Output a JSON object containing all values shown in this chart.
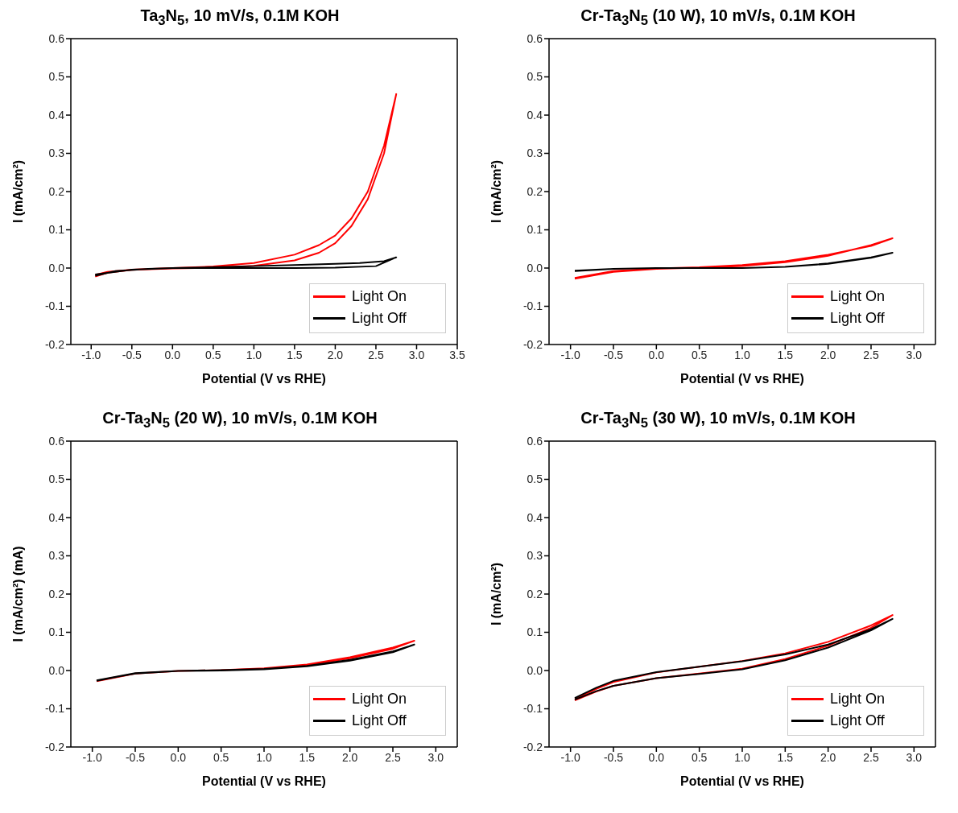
{
  "chart_data": [
    {
      "type": "line",
      "title": "Ta$_{3}$N$_{5}$, 10 mV/s, 0.1M KOH",
      "xlabel": "Potential (V vs RHE)",
      "ylabel": "I (mA/cm²)",
      "xlim": [
        -1.25,
        3.5
      ],
      "xticks": [
        {
          "value": -1,
          "label": "-1.0"
        },
        {
          "value": -0.5,
          "label": "-0.5"
        },
        {
          "value": 0,
          "label": "0.0"
        },
        {
          "value": 0.5,
          "label": "0.5"
        },
        {
          "value": 1,
          "label": "1.0"
        },
        {
          "value": 1.5,
          "label": "1.5"
        },
        {
          "value": 2,
          "label": "2.0"
        },
        {
          "value": 2.5,
          "label": "2.5"
        },
        {
          "value": 3,
          "label": "3.0"
        },
        {
          "value": 3.5,
          "label": "3.5"
        }
      ],
      "ylim": [
        -0.2,
        0.6
      ],
      "yticks": [
        {
          "value": -0.2,
          "label": "-0.2"
        },
        {
          "value": -0.1,
          "label": "-0.1"
        },
        {
          "value": 0,
          "label": "0.0"
        },
        {
          "value": 0.1,
          "label": "0.1"
        },
        {
          "value": 0.2,
          "label": "0.2"
        },
        {
          "value": 0.3,
          "label": "0.3"
        },
        {
          "value": 0.4,
          "label": "0.4"
        },
        {
          "value": 0.5,
          "label": "0.5"
        },
        {
          "value": 0.6,
          "label": "0.6"
        }
      ],
      "legend": "bottom right",
      "grid": false,
      "series": [
        {
          "name": "Light On",
          "color": "#ff0000",
          "x": [
            -0.95,
            -0.8,
            -0.5,
            0,
            0.5,
            1.0,
            1.5,
            1.8,
            2.0,
            2.2,
            2.4,
            2.6,
            2.75,
            2.6,
            2.4,
            2.2,
            2.0,
            1.8,
            1.5,
            1.0,
            0.5,
            0,
            -0.5,
            -0.8,
            -0.95
          ],
          "values": [
            -0.022,
            -0.012,
            -0.005,
            -0.001,
            0.001,
            0.006,
            0.02,
            0.04,
            0.065,
            0.11,
            0.18,
            0.3,
            0.455,
            0.32,
            0.2,
            0.13,
            0.085,
            0.06,
            0.035,
            0.013,
            0.004,
            0.0,
            -0.004,
            -0.01,
            -0.018
          ]
        },
        {
          "name": "Light Off",
          "color": "#000000",
          "x": [
            -0.95,
            -0.7,
            -0.3,
            0,
            0.5,
            1.0,
            1.5,
            2.0,
            2.5,
            2.75,
            2.6,
            2.3,
            2.0,
            1.5,
            1.0,
            0.5,
            0,
            -0.5,
            -0.95
          ],
          "values": [
            -0.02,
            -0.008,
            -0.002,
            0,
            0,
            0,
            0,
            0.001,
            0.005,
            0.028,
            0.018,
            0.013,
            0.011,
            0.008,
            0.005,
            0.002,
            0,
            -0.004,
            -0.017
          ]
        }
      ]
    },
    {
      "type": "line",
      "title": "Cr-Ta$_{3}$N$_{5}$ (10 W), 10 mV/s, 0.1M KOH",
      "xlabel": "Potential (V vs RHE)",
      "ylabel": "I (mA/cm²)",
      "xlim": [
        -1.25,
        3.25
      ],
      "xticks": [
        {
          "value": -1,
          "label": "-1.0"
        },
        {
          "value": -0.5,
          "label": "-0.5"
        },
        {
          "value": 0,
          "label": "0.0"
        },
        {
          "value": 0.5,
          "label": "0.5"
        },
        {
          "value": 1,
          "label": "1.0"
        },
        {
          "value": 1.5,
          "label": "1.5"
        },
        {
          "value": 2,
          "label": "2.0"
        },
        {
          "value": 2.5,
          "label": "2.5"
        },
        {
          "value": 3,
          "label": "3.0"
        }
      ],
      "ylim": [
        -0.2,
        0.6
      ],
      "yticks": [
        {
          "value": -0.2,
          "label": "-0.2"
        },
        {
          "value": -0.1,
          "label": "-0.1"
        },
        {
          "value": 0,
          "label": "0.0"
        },
        {
          "value": 0.1,
          "label": "0.1"
        },
        {
          "value": 0.2,
          "label": "0.2"
        },
        {
          "value": 0.3,
          "label": "0.3"
        },
        {
          "value": 0.4,
          "label": "0.4"
        },
        {
          "value": 0.5,
          "label": "0.5"
        },
        {
          "value": 0.6,
          "label": "0.6"
        }
      ],
      "legend": "bottom right",
      "grid": false,
      "series": [
        {
          "name": "Light On",
          "color": "#ff0000",
          "x": [
            -0.95,
            -0.7,
            -0.5,
            0,
            0.5,
            1.0,
            1.5,
            2.0,
            2.5,
            2.75,
            2.5,
            2.0,
            1.5,
            1.0,
            0.5,
            0,
            -0.5,
            -0.95
          ],
          "values": [
            -0.028,
            -0.018,
            -0.01,
            -0.002,
            0.001,
            0.005,
            0.015,
            0.032,
            0.06,
            0.078,
            0.058,
            0.035,
            0.018,
            0.008,
            0.002,
            -0.001,
            -0.008,
            -0.026
          ]
        },
        {
          "name": "Light Off",
          "color": "#000000",
          "x": [
            -0.95,
            -0.5,
            0,
            0.5,
            1.0,
            1.5,
            2.0,
            2.5,
            2.75,
            2.5,
            2.0,
            1.5,
            1.0,
            0.5,
            0,
            -0.5,
            -0.95
          ],
          "values": [
            -0.008,
            -0.002,
            0,
            0,
            0,
            0.003,
            0.012,
            0.028,
            0.04,
            0.027,
            0.011,
            0.003,
            0,
            0,
            0,
            -0.002,
            -0.007
          ]
        }
      ]
    },
    {
      "type": "line",
      "title": "Cr-Ta$_{3}$N$_{5}$ (20 W), 10 mV/s, 0.1M KOH",
      "xlabel": "Potential (V vs RHE)",
      "ylabel": "I (mA/cm²) (mA)",
      "xlim": [
        -1.25,
        3.25
      ],
      "xticks": [
        {
          "value": -1,
          "label": "-1.0"
        },
        {
          "value": -0.5,
          "label": "-0.5"
        },
        {
          "value": 0,
          "label": "0.0"
        },
        {
          "value": 0.5,
          "label": "0.5"
        },
        {
          "value": 1,
          "label": "1.0"
        },
        {
          "value": 1.5,
          "label": "1.5"
        },
        {
          "value": 2,
          "label": "2.0"
        },
        {
          "value": 2.5,
          "label": "2.5"
        },
        {
          "value": 3,
          "label": "3.0"
        }
      ],
      "ylim": [
        -0.2,
        0.6
      ],
      "yticks": [
        {
          "value": -0.2,
          "label": "-0.2"
        },
        {
          "value": -0.1,
          "label": "-0.1"
        },
        {
          "value": 0,
          "label": "0.0"
        },
        {
          "value": 0.1,
          "label": "0.1"
        },
        {
          "value": 0.2,
          "label": "0.2"
        },
        {
          "value": 0.3,
          "label": "0.3"
        },
        {
          "value": 0.4,
          "label": "0.4"
        },
        {
          "value": 0.5,
          "label": "0.5"
        },
        {
          "value": 0.6,
          "label": "0.6"
        }
      ],
      "legend": "bottom right",
      "grid": false,
      "series": [
        {
          "name": "Light On",
          "color": "#ff0000",
          "x": [
            -0.95,
            -0.7,
            -0.5,
            0,
            0.5,
            1.0,
            1.5,
            2.0,
            2.5,
            2.75,
            2.5,
            2.0,
            1.5,
            1.0,
            0.5,
            0,
            -0.5,
            -0.95
          ],
          "values": [
            -0.028,
            -0.017,
            -0.008,
            -0.001,
            0.001,
            0.006,
            0.016,
            0.035,
            0.06,
            0.078,
            0.057,
            0.032,
            0.014,
            0.005,
            0.001,
            -0.001,
            -0.008,
            -0.027
          ]
        },
        {
          "name": "Light Off",
          "color": "#000000",
          "x": [
            -0.95,
            -0.7,
            -0.5,
            0,
            0.5,
            1.0,
            1.5,
            2.0,
            2.5,
            2.75,
            2.5,
            2.0,
            1.5,
            1.0,
            0.5,
            0,
            -0.5,
            -0.95
          ],
          "values": [
            -0.027,
            -0.016,
            -0.008,
            -0.001,
            0.001,
            0.004,
            0.012,
            0.028,
            0.05,
            0.068,
            0.048,
            0.026,
            0.011,
            0.003,
            0,
            -0.001,
            -0.007,
            -0.026
          ]
        }
      ]
    },
    {
      "type": "line",
      "title": "Cr-Ta$_{3}$N$_{5}$ (30 W), 10 mV/s, 0.1M KOH",
      "xlabel": "Potential (V vs RHE)",
      "ylabel": "I (mA/cm²)",
      "xlim": [
        -1.25,
        3.25
      ],
      "xticks": [
        {
          "value": -1,
          "label": "-1.0"
        },
        {
          "value": -0.5,
          "label": "-0.5"
        },
        {
          "value": 0,
          "label": "0.0"
        },
        {
          "value": 0.5,
          "label": "0.5"
        },
        {
          "value": 1,
          "label": "1.0"
        },
        {
          "value": 1.5,
          "label": "1.5"
        },
        {
          "value": 2,
          "label": "2.0"
        },
        {
          "value": 2.5,
          "label": "2.5"
        },
        {
          "value": 3,
          "label": "3.0"
        }
      ],
      "ylim": [
        -0.2,
        0.6
      ],
      "yticks": [
        {
          "value": -0.2,
          "label": "-0.2"
        },
        {
          "value": -0.1,
          "label": "-0.1"
        },
        {
          "value": 0,
          "label": "0.0"
        },
        {
          "value": 0.1,
          "label": "0.1"
        },
        {
          "value": 0.2,
          "label": "0.2"
        },
        {
          "value": 0.3,
          "label": "0.3"
        },
        {
          "value": 0.4,
          "label": "0.4"
        },
        {
          "value": 0.5,
          "label": "0.5"
        },
        {
          "value": 0.6,
          "label": "0.6"
        }
      ],
      "legend": "bottom right",
      "grid": false,
      "series": [
        {
          "name": "Light On",
          "color": "#ff0000",
          "x": [
            -0.95,
            -0.7,
            -0.5,
            0,
            0.5,
            1.0,
            1.5,
            2.0,
            2.5,
            2.75,
            2.5,
            2.0,
            1.5,
            1.0,
            0.5,
            0,
            -0.5,
            -0.7,
            -0.95
          ],
          "values": [
            -0.078,
            -0.055,
            -0.04,
            -0.02,
            -0.008,
            0.005,
            0.03,
            0.065,
            0.112,
            0.145,
            0.118,
            0.075,
            0.045,
            0.025,
            0.01,
            -0.005,
            -0.03,
            -0.048,
            -0.075
          ]
        },
        {
          "name": "Light Off",
          "color": "#000000",
          "x": [
            -0.95,
            -0.7,
            -0.5,
            0,
            0.5,
            1.0,
            1.5,
            2.0,
            2.5,
            2.75,
            2.5,
            2.0,
            1.5,
            1.0,
            0.5,
            0,
            -0.5,
            -0.7,
            -0.95
          ],
          "values": [
            -0.076,
            -0.054,
            -0.04,
            -0.02,
            -0.009,
            0.003,
            0.027,
            0.06,
            0.105,
            0.135,
            0.108,
            0.068,
            0.042,
            0.024,
            0.01,
            -0.004,
            -0.027,
            -0.045,
            -0.072
          ]
        }
      ]
    }
  ]
}
